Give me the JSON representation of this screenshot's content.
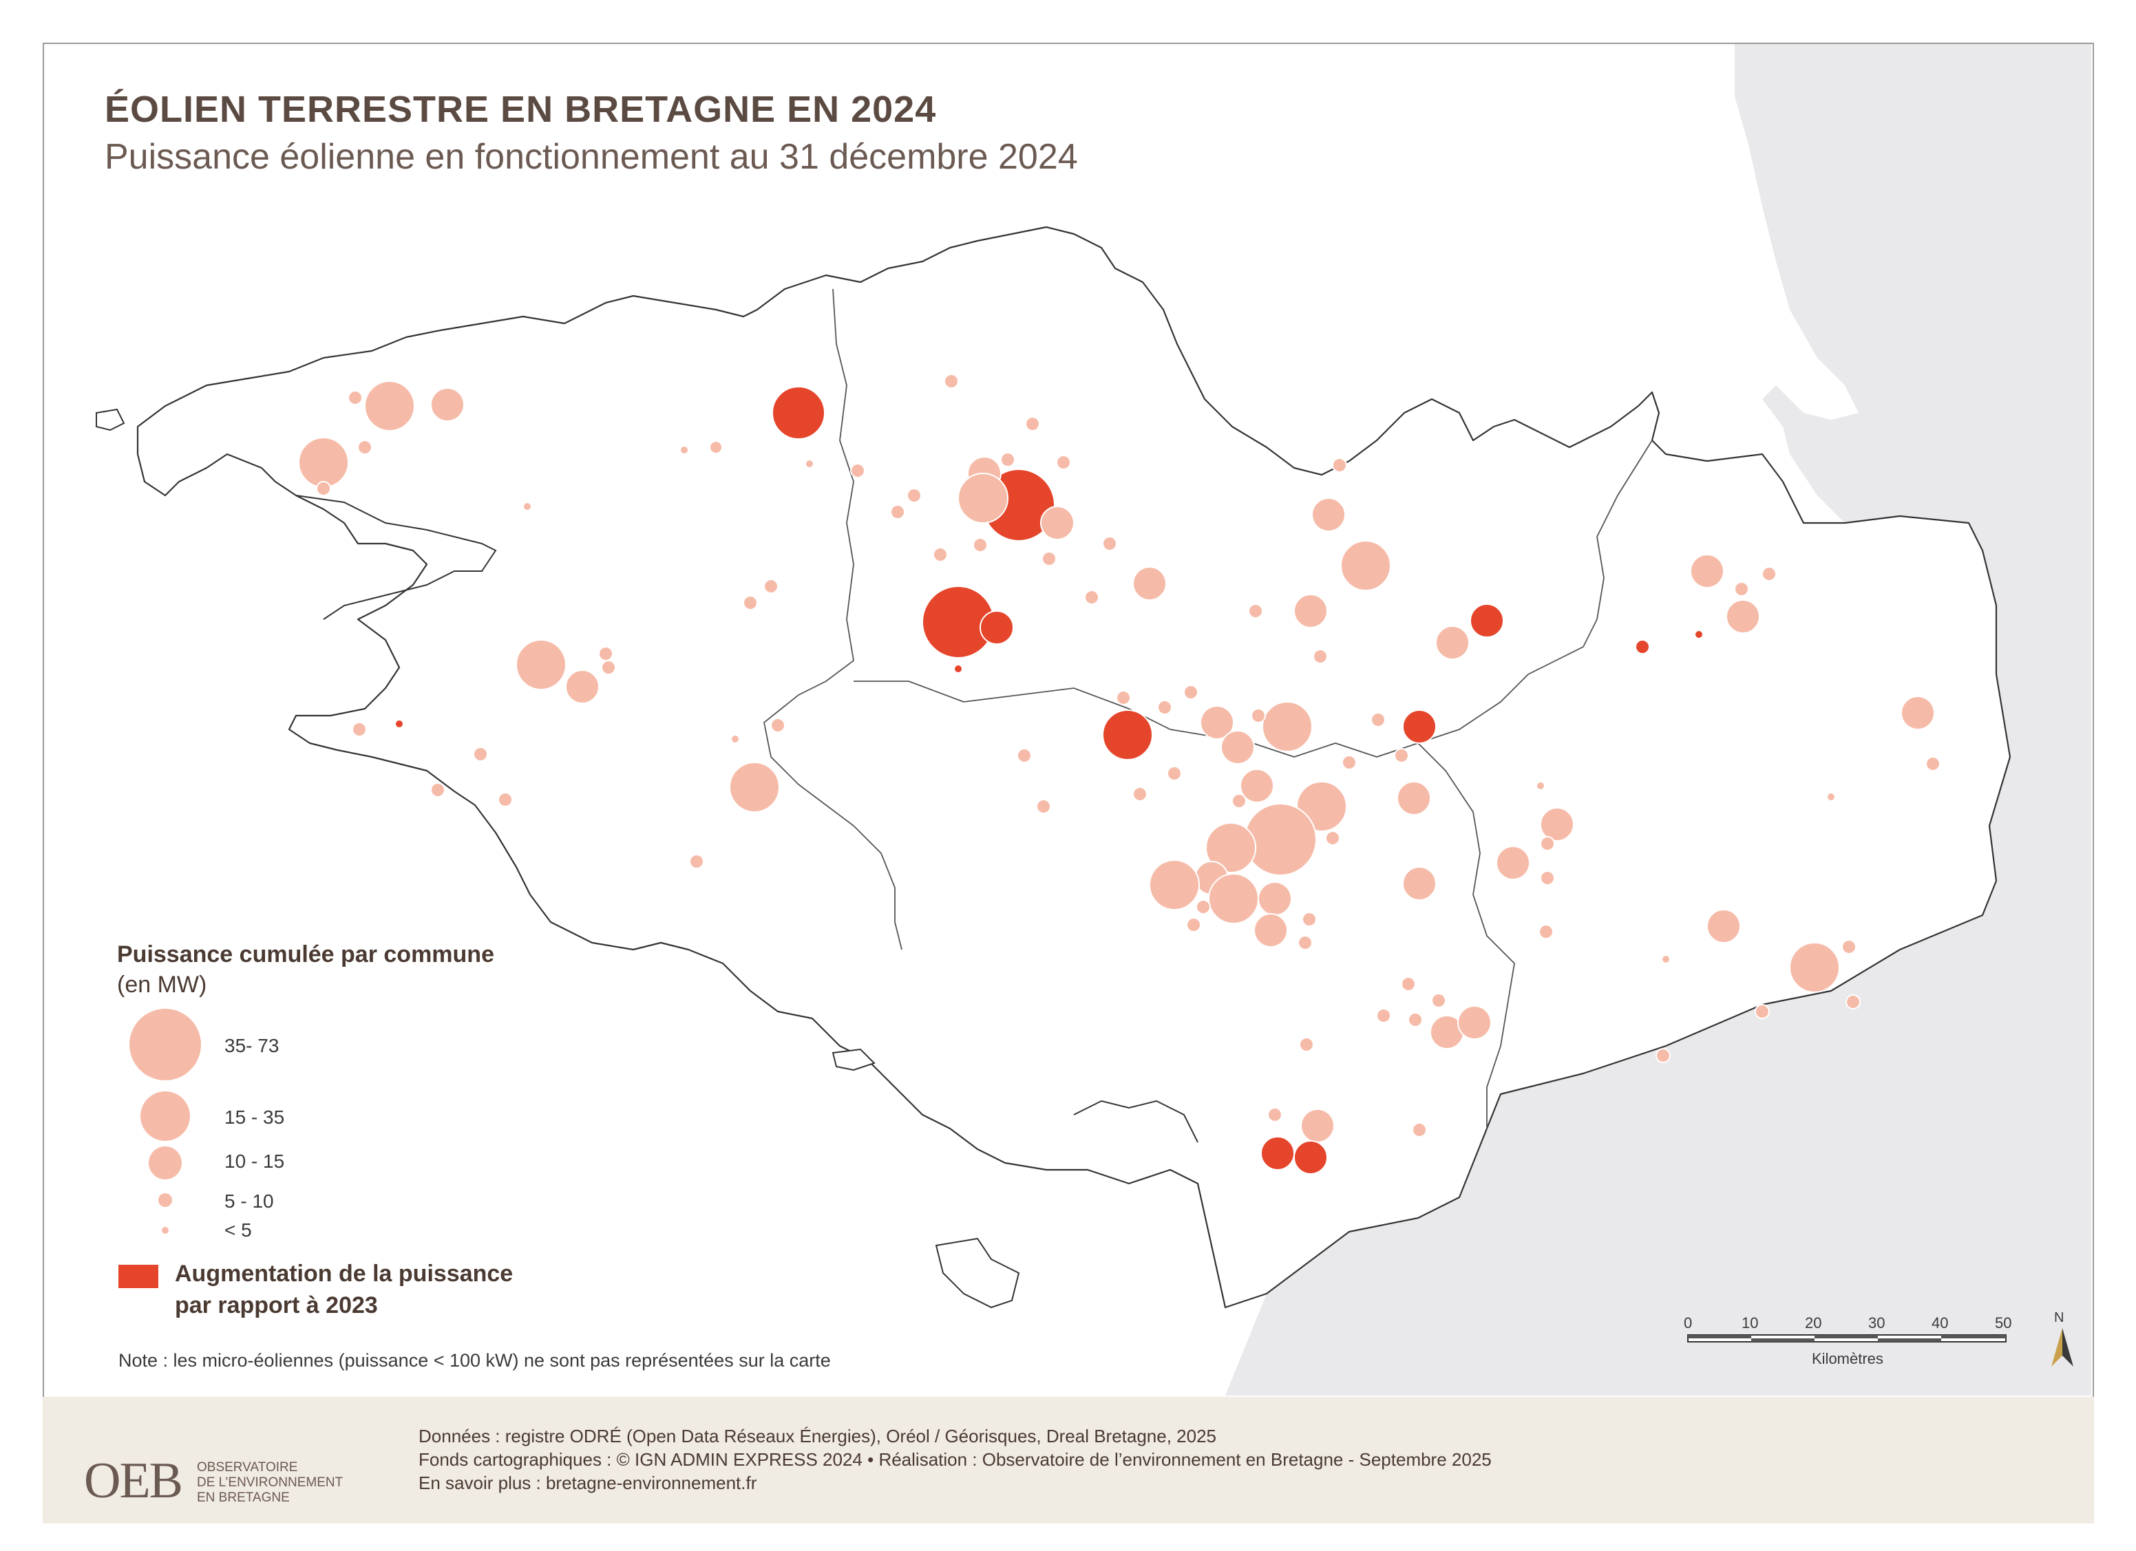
{
  "header": {
    "title": "ÉOLIEN TERRESTRE EN BRETAGNE EN 2024",
    "subtitle": "Puissance éolienne en fonctionnement au 31 décembre 2024"
  },
  "legend": {
    "title": "Puissance cumulée par commune",
    "unit": "(en MW)",
    "classes": [
      "35- 73",
      "15 - 35",
      "10 - 15",
      "5 - 10",
      "< 5"
    ],
    "increase_label_line1": "Augmentation de la puissance",
    "increase_label_line2": "par rapport à 2023"
  },
  "note": "Note : les micro-éoliennes (puissance < 100 kW) ne sont pas représentées sur la carte",
  "scale_bar": {
    "ticks": [
      "0",
      "10",
      "20",
      "30",
      "40",
      "50"
    ],
    "unit": "Kilomètres",
    "north": "N"
  },
  "footer": {
    "line1": "Données : registre ODRÉ (Open Data Réseaux Énergies), Oréol / Géorisques, Dreal Bretagne, 2025",
    "line2": "Fonds cartographiques : © IGN ADMIN EXPRESS 2024 • Réalisation : Observatoire de l’environnement en Bretagne - Septembre 2025",
    "line3": "En savoir plus : bretagne-environnement.fr",
    "logo_text": "OEB",
    "logo_sub1": "OBSERVATOIRE",
    "logo_sub2": "DE L’ENVIRONNEMENT",
    "logo_sub3": "EN BRETAGNE"
  },
  "colors": {
    "existing": "#f6bba8",
    "increase": "#e5452b",
    "sea_land_neighbour": "#e9e9ec",
    "title": "#5b4a42"
  }
}
